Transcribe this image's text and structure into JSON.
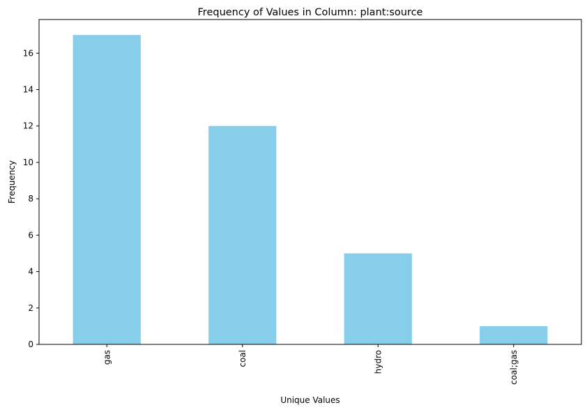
{
  "chart_data": {
    "type": "bar",
    "title": "Frequency of Values in Column: plant:source",
    "xlabel": "Unique Values",
    "ylabel": "Frequency",
    "categories": [
      "gas",
      "coal",
      "hydro",
      "coal;gas"
    ],
    "values": [
      17,
      12,
      5,
      1
    ],
    "ylim": [
      0,
      17.85
    ],
    "yticks": [
      0,
      2,
      4,
      6,
      8,
      10,
      12,
      14,
      16
    ],
    "bar_color": "#87CEEB",
    "grid": false,
    "legend": "none"
  }
}
